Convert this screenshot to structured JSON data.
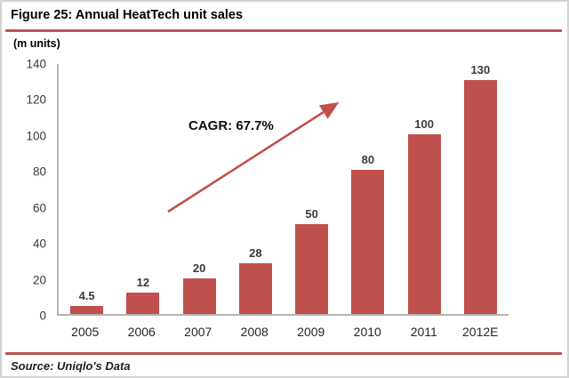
{
  "header": {
    "title": "Figure 25: Annual HeatTech unit sales"
  },
  "chart": {
    "units_label": "(m units)",
    "annotation": "CAGR: 67.7%"
  },
  "footer": {
    "source": "Source: Uniqlo's Data"
  },
  "colors": {
    "bar": "#c0504d",
    "accent_rule": "#bd5453",
    "arrow": "#c0504d",
    "axis": "#b3b3b3"
  },
  "chart_data": {
    "type": "bar",
    "title": "Figure 25: Annual HeatTech unit sales",
    "categories": [
      "2005",
      "2006",
      "2007",
      "2008",
      "2009",
      "2010",
      "2011",
      "2012E"
    ],
    "values": [
      4.5,
      12,
      20,
      28,
      50,
      80,
      100,
      130
    ],
    "data_labels": [
      "4.5",
      "12",
      "20",
      "28",
      "50",
      "80",
      "100",
      "130"
    ],
    "xlabel": "",
    "ylabel": "(m units)",
    "ylim": [
      0,
      140
    ],
    "yticks": [
      0,
      20,
      40,
      60,
      80,
      100,
      120,
      140
    ],
    "grid": false,
    "legend": null,
    "bar_color": "#c0504d",
    "annotations": [
      {
        "text": "CAGR: 67.7%",
        "type": "trend-arrow",
        "direction": "up-right"
      }
    ]
  }
}
